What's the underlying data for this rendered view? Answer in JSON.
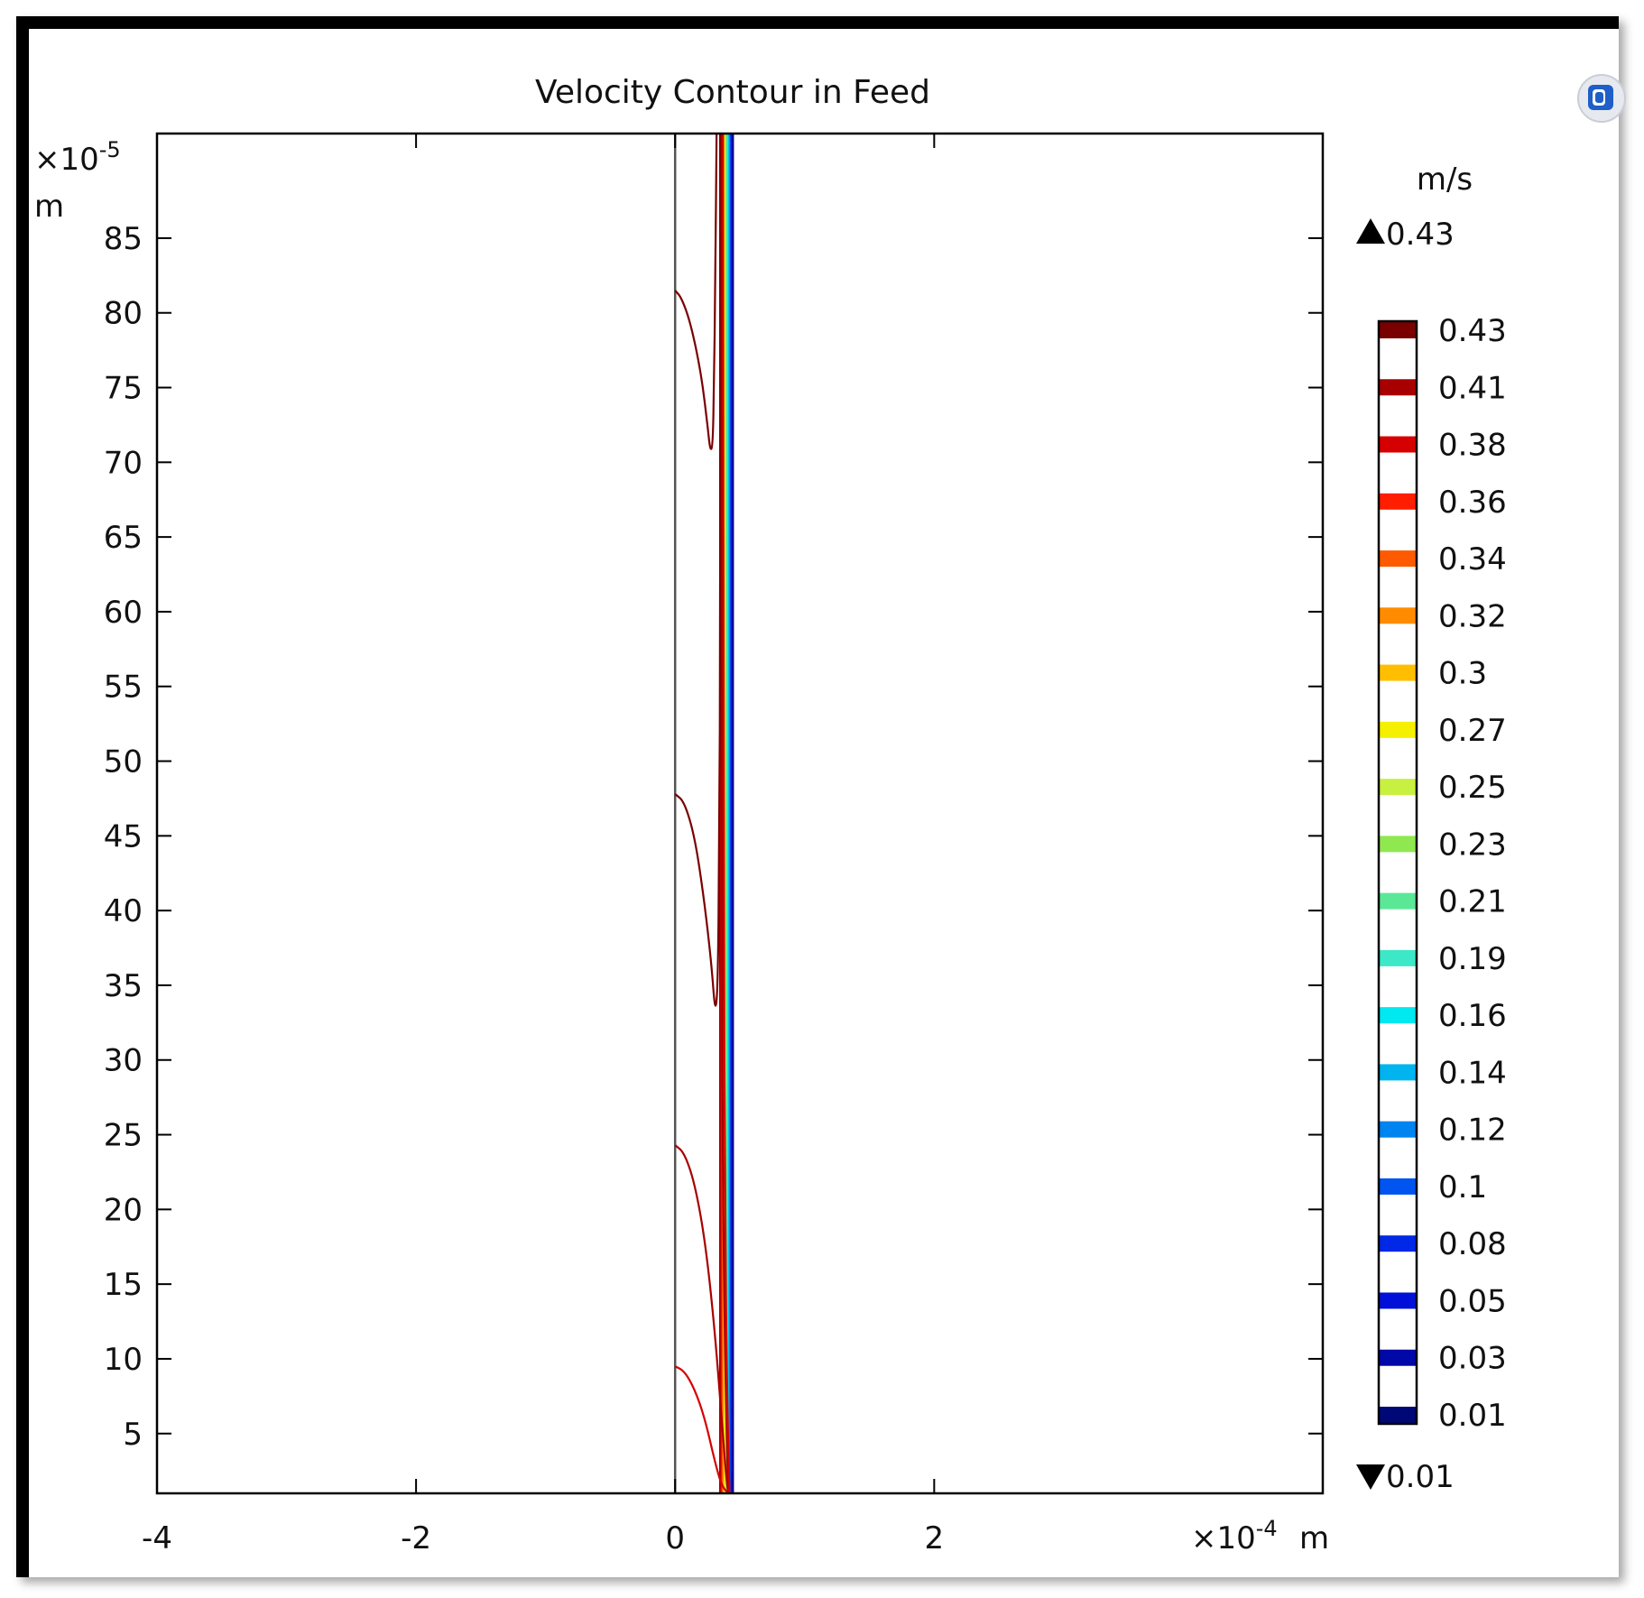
{
  "chart_data": {
    "type": "contour",
    "title": "Velocity Contour in Feed",
    "xaxis": {
      "label": "m",
      "multiplier": "×10",
      "exponent": "-4",
      "range": [
        -4,
        5
      ],
      "ticks": [
        -4,
        -2,
        0,
        2
      ],
      "tick_labels": [
        "-4",
        "-2",
        "0",
        "2"
      ]
    },
    "yaxis": {
      "label": "m",
      "multiplier": "×10",
      "exponent": "-5",
      "range": [
        1,
        92
      ],
      "ticks": [
        5,
        10,
        15,
        20,
        25,
        30,
        35,
        40,
        45,
        50,
        55,
        60,
        65,
        70,
        75,
        80,
        85
      ],
      "tick_labels": [
        "5",
        "10",
        "15",
        "20",
        "25",
        "30",
        "35",
        "40",
        "45",
        "50",
        "55",
        "60",
        "65",
        "70",
        "75",
        "80",
        "85"
      ]
    },
    "grid": false,
    "colorbar": {
      "unit": "m/s",
      "max_label": "0.43",
      "min_label": "0.01",
      "levels": [
        "0.43",
        "0.41",
        "0.38",
        "0.36",
        "0.34",
        "0.32",
        "0.3",
        "0.27",
        "0.25",
        "0.23",
        "0.21",
        "0.19",
        "0.16",
        "0.14",
        "0.12",
        "0.1",
        "0.08",
        "0.05",
        "0.03",
        "0.01"
      ],
      "colors": [
        "#7a0000",
        "#a80000",
        "#d60000",
        "#ff1e00",
        "#ff5a00",
        "#ff8c00",
        "#ffbf00",
        "#f5f000",
        "#c8f040",
        "#90e850",
        "#5ae896",
        "#3ce8c8",
        "#00e8f0",
        "#00b4f0",
        "#0084f0",
        "#0054f0",
        "#0028e6",
        "#0010d8",
        "#0008a8",
        "#000878"
      ]
    },
    "wall": {
      "x": 0
    },
    "band": {
      "x_start": 0.34,
      "x_end": 0.45,
      "levels_high_to_low": [
        "0.43",
        "0.41",
        "0.38",
        "0.36",
        "0.34",
        "0.32",
        "0.3",
        "0.27",
        "0.25",
        "0.23",
        "0.21",
        "0.19",
        "0.16",
        "0.14",
        "0.12",
        "0.1",
        "0.08",
        "0.05",
        "0.03",
        "0.01"
      ]
    },
    "contour_curves": [
      {
        "level": "0.43",
        "color": "#7a0000",
        "points": [
          [
            0,
            81.5
          ],
          [
            0.05,
            81.0
          ],
          [
            0.12,
            79.3
          ],
          [
            0.2,
            76.0
          ],
          [
            0.25,
            72.5
          ],
          [
            0.27,
            70.8
          ],
          [
            0.29,
            71.0
          ],
          [
            0.3,
            75.0
          ],
          [
            0.31,
            82.0
          ],
          [
            0.32,
            92.0
          ]
        ]
      },
      {
        "level": "0.43",
        "color": "#7a0000",
        "points": [
          [
            0,
            47.8
          ],
          [
            0.07,
            47.3
          ],
          [
            0.15,
            45.0
          ],
          [
            0.22,
            41.0
          ],
          [
            0.28,
            36.5
          ],
          [
            0.31,
            33.0
          ],
          [
            0.33,
            35.0
          ],
          [
            0.34,
            44.0
          ],
          [
            0.35,
            60.0
          ],
          [
            0.35,
            92.0
          ]
        ]
      },
      {
        "level": "0.41",
        "color": "#a80000",
        "points": [
          [
            0,
            24.3
          ],
          [
            0.07,
            23.8
          ],
          [
            0.15,
            21.8
          ],
          [
            0.23,
            18.0
          ],
          [
            0.3,
            12.5
          ],
          [
            0.36,
            6.0
          ],
          [
            0.39,
            2.5
          ],
          [
            0.41,
            1.0
          ]
        ]
      },
      {
        "level": "0.38",
        "color": "#d60000",
        "points": [
          [
            0,
            9.5
          ],
          [
            0.07,
            9.2
          ],
          [
            0.15,
            8.0
          ],
          [
            0.23,
            6.0
          ],
          [
            0.31,
            3.0
          ],
          [
            0.36,
            1.5
          ],
          [
            0.41,
            1.0
          ]
        ]
      },
      {
        "level": "0.41",
        "color": "#a80000",
        "points": [
          [
            0.36,
            92.0
          ],
          [
            0.36,
            40.0
          ],
          [
            0.37,
            20.0
          ],
          [
            0.39,
            8.0
          ],
          [
            0.41,
            1.0
          ]
        ]
      },
      {
        "level": "0.38",
        "color": "#d60000",
        "points": [
          [
            0.37,
            92.0
          ],
          [
            0.375,
            40.0
          ],
          [
            0.385,
            20.0
          ],
          [
            0.4,
            8.0
          ],
          [
            0.42,
            1.0
          ]
        ]
      }
    ]
  }
}
